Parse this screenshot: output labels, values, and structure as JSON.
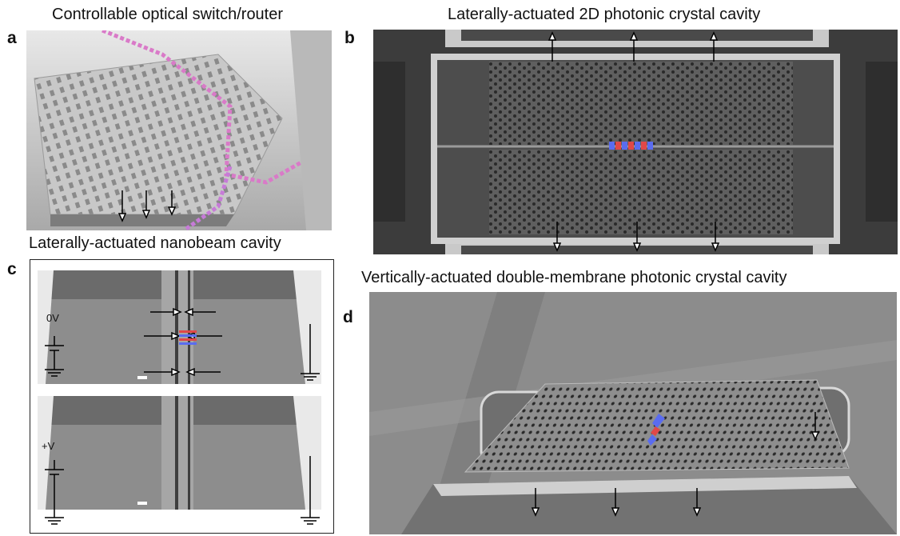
{
  "panels": {
    "a": {
      "letter": "a",
      "title": "Controllable optical switch/router"
    },
    "b": {
      "letter": "b",
      "title": "Laterally-actuated 2D photonic crystal cavity"
    },
    "c": {
      "letter": "c",
      "title": "Laterally-actuated nanobeam cavity",
      "voltage_top": "0V",
      "voltage_bottom": "+V"
    },
    "d": {
      "letter": "d",
      "title": "Vertically-actuated double-membrane photonic crystal cavity"
    }
  },
  "colors": {
    "mode_red": "#e04848",
    "mode_blue": "#5a6cf0"
  },
  "icons": [
    "down-arrow-icon",
    "up-arrow-icon",
    "left-arrow-icon",
    "right-arrow-icon",
    "ground-symbol-icon",
    "dc-source-icon"
  ]
}
